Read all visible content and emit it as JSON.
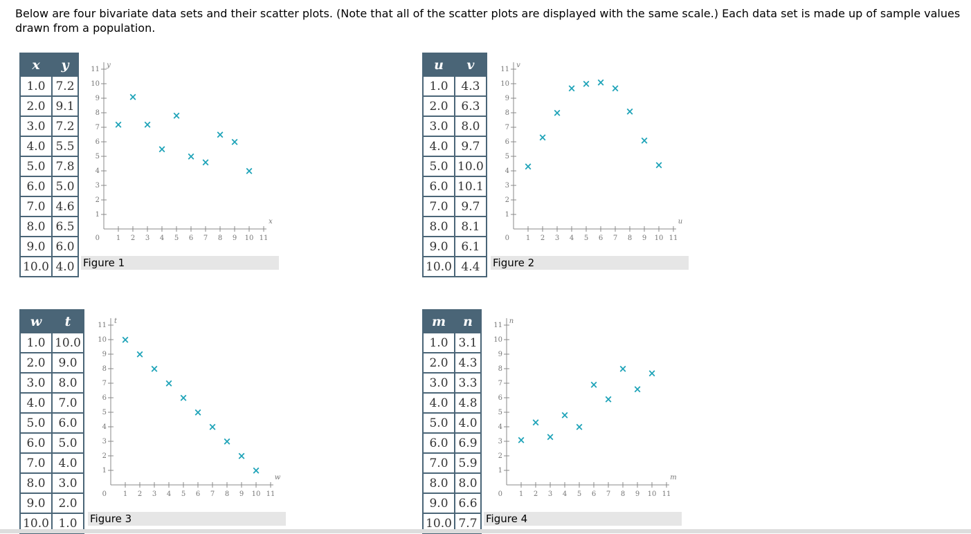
{
  "intro": "Below are four bivariate data sets and their scatter plots. (Note that all of the scatter plots are displayed with the same scale.) Each data set is made up of sample values drawn from a population.",
  "panels": [
    {
      "table": {
        "headers": [
          "x",
          "y"
        ],
        "rows": [
          [
            "1.0",
            "7.2"
          ],
          [
            "2.0",
            "9.1"
          ],
          [
            "3.0",
            "7.2"
          ],
          [
            "4.0",
            "5.5"
          ],
          [
            "5.0",
            "7.8"
          ],
          [
            "6.0",
            "5.0"
          ],
          [
            "7.0",
            "4.6"
          ],
          [
            "8.0",
            "6.5"
          ],
          [
            "9.0",
            "6.0"
          ],
          [
            "10.0",
            "4.0"
          ]
        ]
      },
      "caption": "Figure 1"
    },
    {
      "table": {
        "headers": [
          "u",
          "v"
        ],
        "rows": [
          [
            "1.0",
            "4.3"
          ],
          [
            "2.0",
            "6.3"
          ],
          [
            "3.0",
            "8.0"
          ],
          [
            "4.0",
            "9.7"
          ],
          [
            "5.0",
            "10.0"
          ],
          [
            "6.0",
            "10.1"
          ],
          [
            "7.0",
            "9.7"
          ],
          [
            "8.0",
            "8.1"
          ],
          [
            "9.0",
            "6.1"
          ],
          [
            "10.0",
            "4.4"
          ]
        ]
      },
      "caption": "Figure 2"
    },
    {
      "table": {
        "headers": [
          "w",
          "t"
        ],
        "rows": [
          [
            "1.0",
            "10.0"
          ],
          [
            "2.0",
            "9.0"
          ],
          [
            "3.0",
            "8.0"
          ],
          [
            "4.0",
            "7.0"
          ],
          [
            "5.0",
            "6.0"
          ],
          [
            "6.0",
            "5.0"
          ],
          [
            "7.0",
            "4.0"
          ],
          [
            "8.0",
            "3.0"
          ],
          [
            "9.0",
            "2.0"
          ],
          [
            "10.0",
            "1.0"
          ]
        ]
      },
      "caption": "Figure 3"
    },
    {
      "table": {
        "headers": [
          "m",
          "n"
        ],
        "rows": [
          [
            "1.0",
            "3.1"
          ],
          [
            "2.0",
            "4.3"
          ],
          [
            "3.0",
            "3.3"
          ],
          [
            "4.0",
            "4.8"
          ],
          [
            "5.0",
            "4.0"
          ],
          [
            "6.0",
            "6.9"
          ],
          [
            "7.0",
            "5.9"
          ],
          [
            "8.0",
            "8.0"
          ],
          [
            "9.0",
            "6.6"
          ],
          [
            "10.0",
            "7.7"
          ]
        ]
      },
      "caption": "Figure 4"
    }
  ],
  "chart_data": [
    {
      "type": "scatter",
      "xlabel": "x",
      "ylabel": "y",
      "xlim": [
        0,
        11
      ],
      "ylim": [
        0,
        11
      ],
      "xticks": [
        "1",
        "2",
        "3",
        "4",
        "5",
        "6",
        "7",
        "8",
        "9",
        "10",
        "11"
      ],
      "yticks": [
        "1",
        "2",
        "3",
        "4",
        "5",
        "6",
        "7",
        "8",
        "9",
        "10",
        "11"
      ],
      "origin_label": "0",
      "marker": "×",
      "color": "#1ea3b8",
      "x": [
        1,
        2,
        3,
        4,
        5,
        6,
        7,
        8,
        9,
        10
      ],
      "y": [
        7.2,
        9.1,
        7.2,
        5.5,
        7.8,
        5.0,
        4.6,
        6.5,
        6.0,
        4.0
      ]
    },
    {
      "type": "scatter",
      "xlabel": "u",
      "ylabel": "v",
      "xlim": [
        0,
        11
      ],
      "ylim": [
        0,
        11
      ],
      "xticks": [
        "1",
        "2",
        "3",
        "4",
        "5",
        "6",
        "7",
        "8",
        "9",
        "10",
        "11"
      ],
      "yticks": [
        "1",
        "2",
        "3",
        "4",
        "5",
        "6",
        "7",
        "8",
        "9",
        "10",
        "11"
      ],
      "origin_label": "0",
      "marker": "×",
      "color": "#1ea3b8",
      "x": [
        1,
        2,
        3,
        4,
        5,
        6,
        7,
        8,
        9,
        10
      ],
      "y": [
        4.3,
        6.3,
        8.0,
        9.7,
        10.0,
        10.1,
        9.7,
        8.1,
        6.1,
        4.4
      ]
    },
    {
      "type": "scatter",
      "xlabel": "w",
      "ylabel": "t",
      "xlim": [
        0,
        11
      ],
      "ylim": [
        0,
        11
      ],
      "xticks": [
        "1",
        "2",
        "3",
        "4",
        "5",
        "6",
        "7",
        "8",
        "9",
        "10",
        "11"
      ],
      "yticks": [
        "1",
        "2",
        "3",
        "4",
        "5",
        "6",
        "7",
        "8",
        "9",
        "10",
        "11"
      ],
      "origin_label": "0",
      "marker": "×",
      "color": "#1ea3b8",
      "x": [
        1,
        2,
        3,
        4,
        5,
        6,
        7,
        8,
        9,
        10
      ],
      "y": [
        10.0,
        9.0,
        8.0,
        7.0,
        6.0,
        5.0,
        4.0,
        3.0,
        2.0,
        1.0
      ]
    },
    {
      "type": "scatter",
      "xlabel": "m",
      "ylabel": "n",
      "xlim": [
        0,
        11
      ],
      "ylim": [
        0,
        11
      ],
      "xticks": [
        "1",
        "2",
        "3",
        "4",
        "5",
        "6",
        "7",
        "8",
        "9",
        "10",
        "11"
      ],
      "yticks": [
        "1",
        "2",
        "3",
        "4",
        "5",
        "6",
        "7",
        "8",
        "9",
        "10",
        "11"
      ],
      "origin_label": "0",
      "marker": "×",
      "color": "#1ea3b8",
      "x": [
        1,
        2,
        3,
        4,
        5,
        6,
        7,
        8,
        9,
        10
      ],
      "y": [
        3.1,
        4.3,
        3.3,
        4.8,
        4.0,
        6.9,
        5.9,
        8.0,
        6.6,
        7.7
      ]
    }
  ]
}
